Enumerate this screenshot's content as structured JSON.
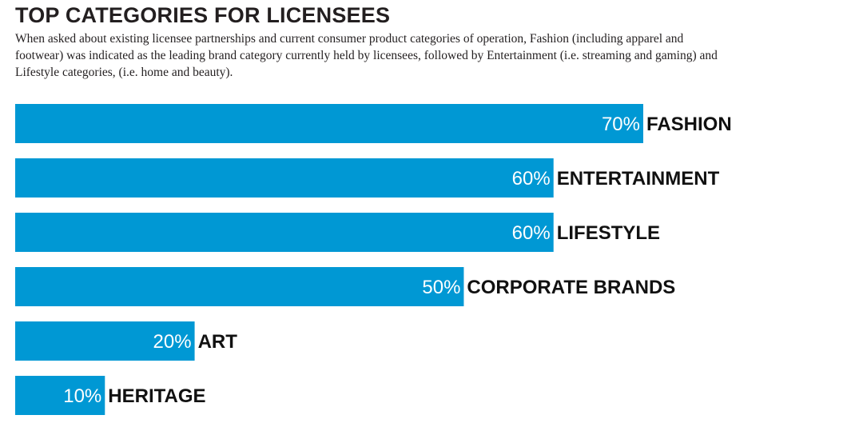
{
  "chart_data": {
    "type": "bar",
    "orientation": "horizontal",
    "title": "TOP CATEGORIES FOR LICENSEES",
    "subtitle": "When asked about existing licensee partnerships and current consumer product categories of operation, Fashion (including apparel and footwear) was indicated as the leading brand category currently held by licensees, followed by Entertainment (i.e. streaming and gaming) and Lifestyle categories, (i.e. home and beauty).",
    "categories": [
      "FASHION",
      "ENTERTAINMENT",
      "LIFESTYLE",
      "CORPORATE BRANDS",
      "ART",
      "HERITAGE"
    ],
    "values": [
      70,
      60,
      60,
      50,
      20,
      10
    ],
    "value_labels": [
      "70%",
      "60%",
      "60%",
      "50%",
      "20%",
      "10%"
    ],
    "unit": "%",
    "xlabel": "",
    "ylabel": "",
    "xlim": [
      0,
      100
    ],
    "grid": false,
    "legend": "none",
    "bar_color": "#0098d4"
  }
}
